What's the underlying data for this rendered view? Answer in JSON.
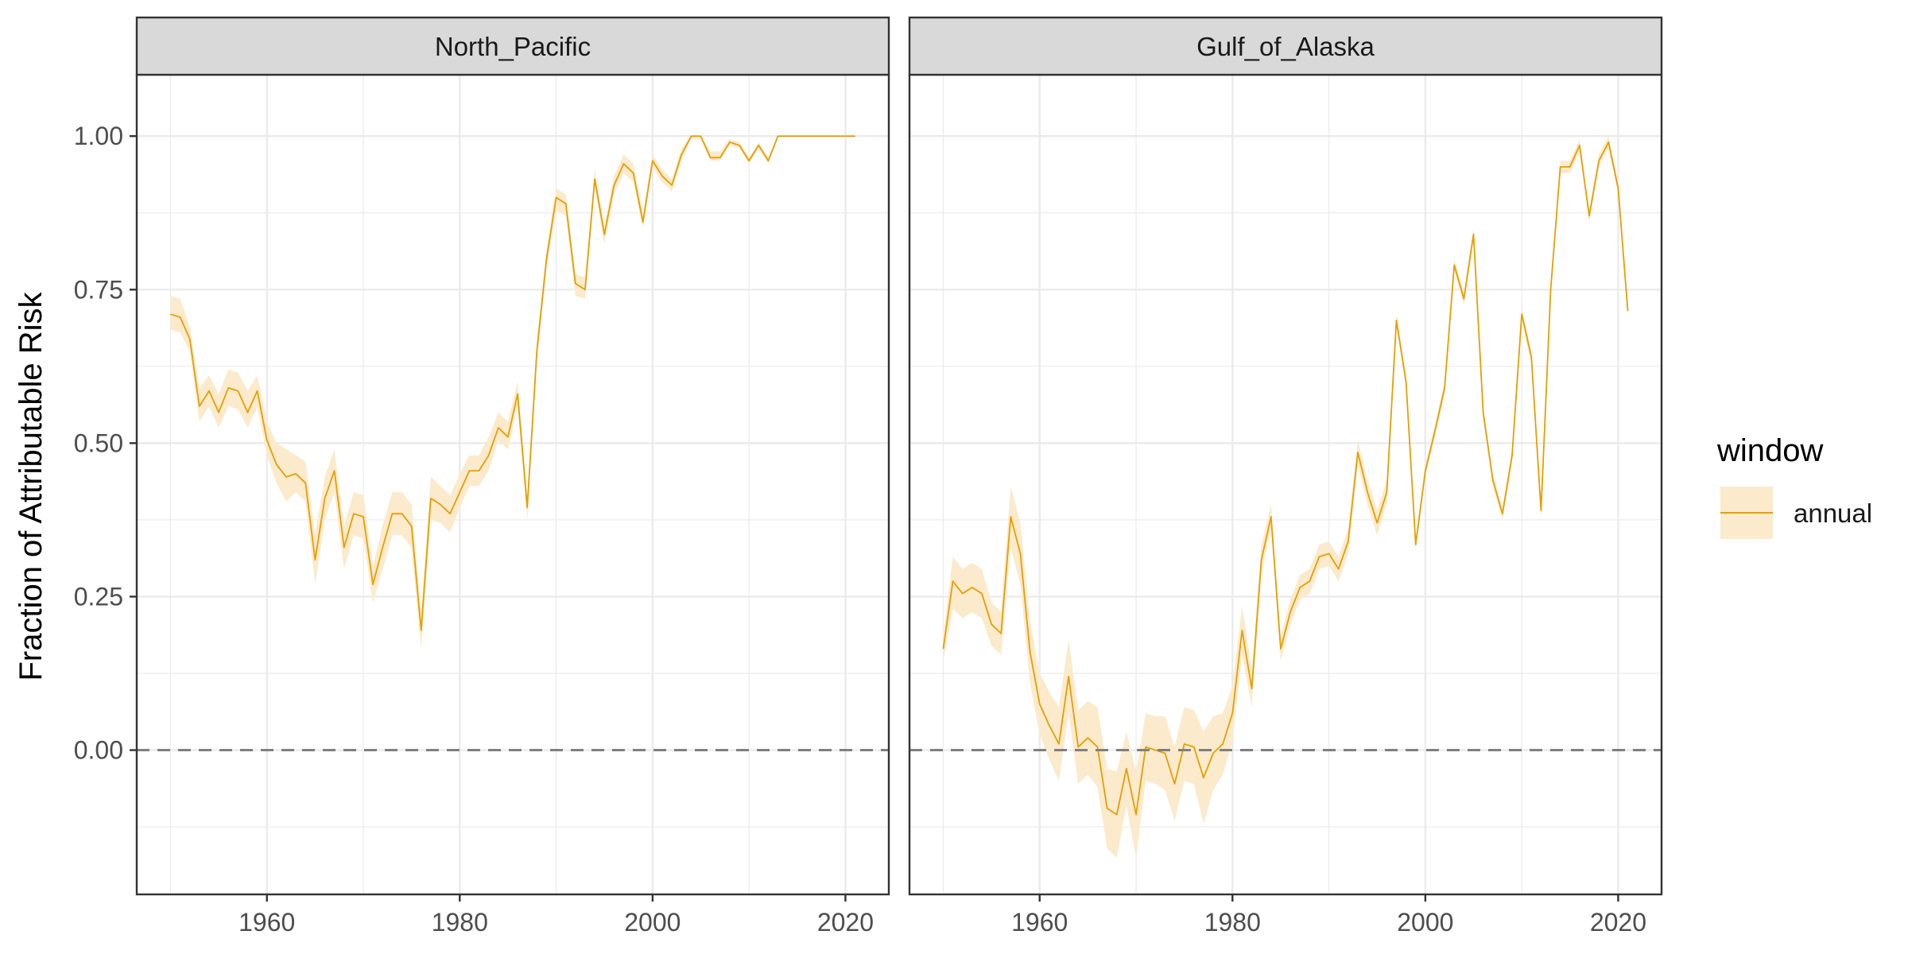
{
  "chart_data": {
    "type": "line",
    "facet_label": "",
    "ylabel": "Fraction of Attributable Risk",
    "xlabel": "",
    "x_ticks": [
      1960,
      1980,
      2000,
      2020
    ],
    "y_ticks": [
      0,
      0.25,
      0.5,
      0.75,
      1
    ],
    "y_tick_labels": [
      "0.00",
      "0.25",
      "0.50",
      "0.75",
      "1.00"
    ],
    "xlim": [
      1946.5,
      2024.5
    ],
    "ylim": [
      -0.235,
      1.1
    ],
    "grid": true,
    "reference_line": {
      "y": 0,
      "style": "dashed"
    },
    "legend": {
      "title": "window",
      "position": "right",
      "entries": [
        "annual"
      ]
    },
    "colors": {
      "line": "#E69F00",
      "ribbon": "#FBEACC",
      "strip": "#D9D9D9",
      "grid": "#EBEBEB",
      "refline": "#7F7F7F"
    },
    "panels": [
      {
        "title": "North_Pacific",
        "series": [
          {
            "name": "annual",
            "x": [
              1950,
              1951,
              1952,
              1953,
              1954,
              1955,
              1956,
              1957,
              1958,
              1959,
              1960,
              1961,
              1962,
              1963,
              1964,
              1965,
              1966,
              1967,
              1968,
              1969,
              1970,
              1971,
              1972,
              1973,
              1974,
              1975,
              1976,
              1977,
              1978,
              1979,
              1980,
              1981,
              1982,
              1983,
              1984,
              1985,
              1986,
              1987,
              1988,
              1989,
              1990,
              1991,
              1992,
              1993,
              1994,
              1995,
              1996,
              1997,
              1998,
              1999,
              2000,
              2001,
              2002,
              2003,
              2004,
              2005,
              2006,
              2007,
              2008,
              2009,
              2010,
              2011,
              2012,
              2013,
              2014,
              2015,
              2016,
              2017,
              2018,
              2019,
              2020,
              2021
            ],
            "y": [
              0.71,
              0.705,
              0.67,
              0.56,
              0.585,
              0.55,
              0.59,
              0.585,
              0.55,
              0.585,
              0.505,
              0.465,
              0.445,
              0.45,
              0.435,
              0.31,
              0.41,
              0.455,
              0.33,
              0.385,
              0.38,
              0.27,
              0.33,
              0.385,
              0.385,
              0.365,
              0.195,
              0.41,
              0.4,
              0.385,
              0.42,
              0.455,
              0.455,
              0.48,
              0.525,
              0.51,
              0.58,
              0.395,
              0.65,
              0.8,
              0.9,
              0.89,
              0.76,
              0.75,
              0.93,
              0.84,
              0.92,
              0.955,
              0.94,
              0.86,
              0.96,
              0.935,
              0.92,
              0.97,
              1.0,
              1.0,
              0.965,
              0.965,
              0.99,
              0.985,
              0.96,
              0.985,
              0.96,
              1.0,
              1.0,
              1.0,
              1.0,
              1.0,
              1.0,
              1.0,
              1.0,
              1.0
            ],
            "lower": [
              0.685,
              0.68,
              0.65,
              0.535,
              0.56,
              0.525,
              0.56,
              0.555,
              0.525,
              0.56,
              0.48,
              0.435,
              0.405,
              0.42,
              0.405,
              0.27,
              0.375,
              0.42,
              0.295,
              0.35,
              0.345,
              0.24,
              0.295,
              0.35,
              0.35,
              0.33,
              0.165,
              0.375,
              0.37,
              0.355,
              0.395,
              0.43,
              0.43,
              0.455,
              0.505,
              0.49,
              0.56,
              0.375,
              0.63,
              0.785,
              0.88,
              0.87,
              0.74,
              0.735,
              0.915,
              0.825,
              0.905,
              0.94,
              0.925,
              0.85,
              0.95,
              0.925,
              0.91,
              0.96,
              0.995,
              0.995,
              0.96,
              0.96,
              0.985,
              0.98,
              0.955,
              0.98,
              0.955,
              0.998,
              0.998,
              0.998,
              0.998,
              0.998,
              0.998,
              0.998,
              0.998,
              0.998
            ],
            "upper": [
              0.74,
              0.735,
              0.69,
              0.59,
              0.61,
              0.58,
              0.62,
              0.615,
              0.585,
              0.61,
              0.535,
              0.5,
              0.49,
              0.48,
              0.47,
              0.35,
              0.445,
              0.49,
              0.365,
              0.42,
              0.415,
              0.3,
              0.365,
              0.42,
              0.42,
              0.4,
              0.225,
              0.445,
              0.43,
              0.415,
              0.45,
              0.48,
              0.48,
              0.51,
              0.55,
              0.535,
              0.6,
              0.415,
              0.67,
              0.815,
              0.915,
              0.905,
              0.775,
              0.77,
              0.945,
              0.855,
              0.935,
              0.97,
              0.955,
              0.875,
              0.97,
              0.945,
              0.93,
              0.98,
              1.0,
              1.0,
              0.975,
              0.975,
              0.995,
              0.99,
              0.965,
              0.99,
              0.965,
              1.0,
              1.0,
              1.0,
              1.0,
              1.0,
              1.0,
              1.0,
              1.0,
              1.0
            ]
          }
        ]
      },
      {
        "title": "Gulf_of_Alaska",
        "series": [
          {
            "name": "annual",
            "x": [
              1950,
              1951,
              1952,
              1953,
              1954,
              1955,
              1956,
              1957,
              1958,
              1959,
              1960,
              1961,
              1962,
              1963,
              1964,
              1965,
              1966,
              1967,
              1968,
              1969,
              1970,
              1971,
              1972,
              1973,
              1974,
              1975,
              1976,
              1977,
              1978,
              1979,
              1980,
              1981,
              1982,
              1983,
              1984,
              1985,
              1986,
              1987,
              1988,
              1989,
              1990,
              1991,
              1992,
              1993,
              1994,
              1995,
              1996,
              1997,
              1998,
              1999,
              2000,
              2001,
              2002,
              2003,
              2004,
              2005,
              2006,
              2007,
              2008,
              2009,
              2010,
              2011,
              2012,
              2013,
              2014,
              2015,
              2016,
              2017,
              2018,
              2019,
              2020,
              2021
            ],
            "y": [
              0.165,
              0.275,
              0.255,
              0.265,
              0.255,
              0.205,
              0.19,
              0.38,
              0.32,
              0.16,
              0.075,
              0.04,
              0.01,
              0.12,
              0.005,
              0.02,
              0.005,
              -0.095,
              -0.105,
              -0.03,
              -0.105,
              0.005,
              0.0,
              -0.005,
              -0.055,
              0.01,
              0.005,
              -0.045,
              -0.005,
              0.01,
              0.06,
              0.195,
              0.1,
              0.31,
              0.38,
              0.165,
              0.225,
              0.265,
              0.275,
              0.315,
              0.32,
              0.295,
              0.34,
              0.485,
              0.42,
              0.37,
              0.42,
              0.7,
              0.6,
              0.335,
              0.455,
              0.52,
              0.59,
              0.79,
              0.735,
              0.84,
              0.55,
              0.44,
              0.385,
              0.48,
              0.71,
              0.64,
              0.39,
              0.75,
              0.95,
              0.95,
              0.985,
              0.87,
              0.96,
              0.99,
              0.915,
              0.715
            ],
            "lower": [
              0.145,
              0.23,
              0.215,
              0.225,
              0.215,
              0.17,
              0.155,
              0.33,
              0.27,
              0.11,
              0.025,
              -0.015,
              -0.05,
              0.06,
              -0.055,
              -0.04,
              -0.06,
              -0.16,
              -0.175,
              -0.09,
              -0.175,
              -0.05,
              -0.055,
              -0.065,
              -0.115,
              -0.05,
              -0.055,
              -0.12,
              -0.065,
              -0.04,
              0.015,
              0.155,
              0.07,
              0.285,
              0.36,
              0.145,
              0.205,
              0.245,
              0.255,
              0.295,
              0.3,
              0.275,
              0.32,
              0.465,
              0.4,
              0.35,
              0.4,
              0.69,
              0.59,
              0.325,
              0.445,
              0.51,
              0.58,
              0.78,
              0.725,
              0.83,
              0.54,
              0.43,
              0.375,
              0.47,
              0.7,
              0.63,
              0.38,
              0.74,
              0.94,
              0.94,
              0.975,
              0.86,
              0.95,
              0.98,
              0.905,
              0.705
            ],
            "upper": [
              0.185,
              0.315,
              0.295,
              0.305,
              0.295,
              0.24,
              0.225,
              0.43,
              0.37,
              0.21,
              0.125,
              0.095,
              0.07,
              0.18,
              0.065,
              0.08,
              0.07,
              -0.03,
              -0.035,
              0.03,
              -0.035,
              0.06,
              0.055,
              0.055,
              0.005,
              0.07,
              0.065,
              0.03,
              0.055,
              0.06,
              0.105,
              0.235,
              0.13,
              0.335,
              0.4,
              0.185,
              0.245,
              0.285,
              0.295,
              0.335,
              0.34,
              0.315,
              0.36,
              0.505,
              0.44,
              0.39,
              0.44,
              0.71,
              0.61,
              0.345,
              0.465,
              0.53,
              0.6,
              0.8,
              0.745,
              0.85,
              0.56,
              0.45,
              0.395,
              0.49,
              0.72,
              0.65,
              0.4,
              0.76,
              0.96,
              0.96,
              0.995,
              0.88,
              0.97,
              1.0,
              0.925,
              0.725
            ]
          }
        ]
      }
    ]
  }
}
